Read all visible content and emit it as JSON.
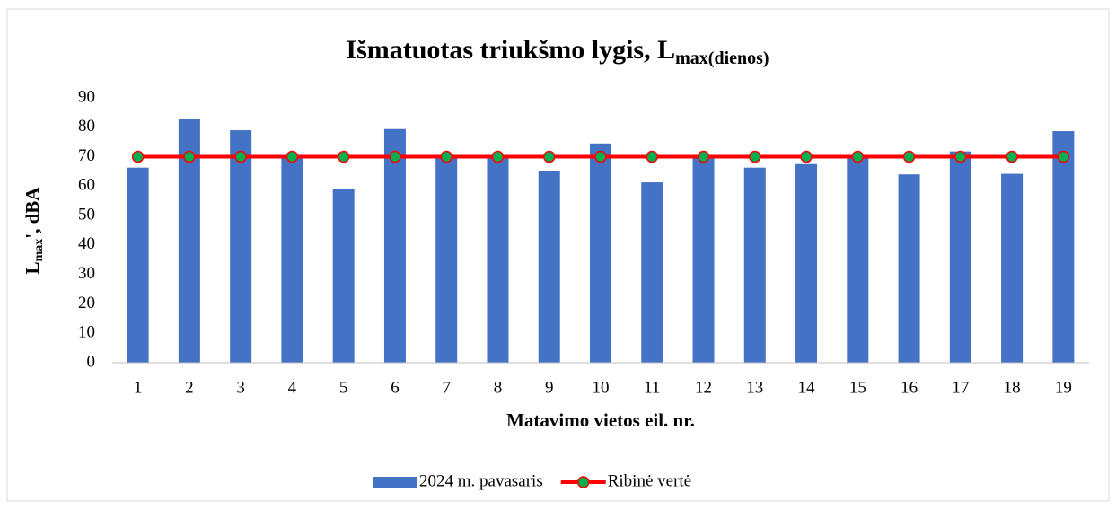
{
  "chart_data": {
    "type": "bar_line",
    "title": "Išmatuotas triukšmo lygis, L",
    "title_subscript": "max(dienos)",
    "x_label": "Matavimo vietos  eil. nr.",
    "y_label": "L",
    "y_label_subscript": "max",
    "y_label_suffix": "', dBA",
    "categories": [
      "1",
      "2",
      "3",
      "4",
      "5",
      "6",
      "7",
      "8",
      "9",
      "10",
      "11",
      "12",
      "13",
      "14",
      "15",
      "16",
      "17",
      "18",
      "19"
    ],
    "series": [
      {
        "name": "2024 m. pavasaris",
        "type": "bar",
        "color": "#4472c4",
        "values": [
          66.3,
          82.7,
          79,
          69.5,
          59.2,
          79.4,
          69.8,
          70.3,
          65.2,
          74.5,
          61.3,
          70.6,
          66.3,
          67.5,
          70.3,
          64,
          71.8,
          64.2,
          78.7
        ]
      },
      {
        "name": "Ribinė vertė",
        "type": "line",
        "color": "#ff0000",
        "marker_color": "#00b050",
        "values": [
          70,
          70,
          70,
          70,
          70,
          70,
          70,
          70,
          70,
          70,
          70,
          70,
          70,
          70,
          70,
          70,
          70,
          70,
          70
        ]
      }
    ],
    "ylim": [
      0,
      90
    ],
    "yticks": [
      0,
      10,
      20,
      30,
      40,
      50,
      60,
      70,
      80,
      90
    ],
    "grid": false,
    "legend": "bottom"
  }
}
